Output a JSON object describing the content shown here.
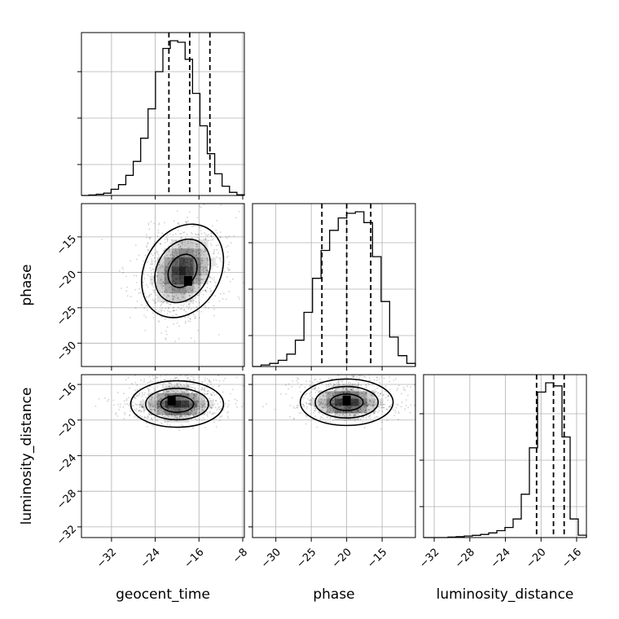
{
  "chart_data": {
    "type": "corner",
    "parameters": [
      "geocent_time",
      "phase",
      "luminosity_distance"
    ],
    "axis_labels": {
      "x": [
        "geocent_time",
        "phase",
        "luminosity_distance"
      ],
      "y": [
        "phase",
        "luminosity_distance"
      ]
    },
    "ranges": {
      "geocent_time": [
        -37.5,
        -7.7
      ],
      "phase": [
        -33.3,
        -10.3
      ],
      "luminosity_distance": [
        -33.2,
        -14.9
      ]
    },
    "ticks": {
      "geocent_time": {
        "values": [
          -32,
          -24,
          -16,
          -8
        ],
        "labels": [
          "−32",
          "−24",
          "−16",
          "−8"
        ]
      },
      "phase": {
        "values": [
          -30,
          -25,
          -20,
          -15
        ],
        "labels": [
          "−30",
          "−25",
          "−20",
          "−15"
        ]
      },
      "luminosity_distance": {
        "values": [
          -32,
          -28,
          -24,
          -20,
          -16
        ],
        "labels": [
          "−32",
          "−28",
          "−24",
          "−20",
          "−16"
        ]
      }
    },
    "grid": true,
    "histograms": [
      {
        "parameter": "geocent_time",
        "range": [
          -37.5,
          -7.7
        ],
        "counts": [
          0.0,
          0.3,
          0.8,
          1.5,
          4.0,
          7.0,
          13.0,
          22.0,
          37.0,
          56.0,
          80.0,
          95.0,
          100.0,
          99.0,
          88.0,
          66.0,
          45.0,
          27.0,
          14.0,
          6.0,
          2.0,
          0.5
        ],
        "quantiles": [
          -21.5,
          -17.7,
          -14.0
        ]
      },
      {
        "parameter": "phase",
        "range": [
          -33.3,
          -10.3
        ],
        "counts": [
          0.0,
          1.0,
          2.0,
          4.0,
          8.0,
          17.0,
          35.0,
          57.0,
          75.0,
          88.0,
          96.0,
          99.0,
          100.0,
          93.0,
          71.0,
          42.0,
          19.0,
          7.0,
          2.0
        ],
        "quantiles": [
          -23.5,
          -20.0,
          -16.6
        ]
      },
      {
        "parameter": "luminosity_distance",
        "range": [
          -33.2,
          -14.9
        ],
        "counts": [
          0.0,
          0.0,
          0.0,
          0.3,
          0.6,
          1.0,
          1.4,
          2.0,
          3.0,
          4.5,
          6.5,
          12.0,
          28.0,
          58.0,
          94.0,
          100.0,
          98.0,
          65.0,
          12.0,
          1.5
        ],
        "quantiles": [
          -20.5,
          -18.6,
          -17.4
        ]
      }
    ],
    "joint_2d": [
      {
        "x": "geocent_time",
        "y": "phase",
        "center": [
          -19.0,
          -19.8
        ],
        "peak_bin": [
          -18.0,
          -21.2
        ],
        "correlation": "negative",
        "contour_levels": 3,
        "scatter_extent": {
          "x": [
            -33.0,
            -9.5
          ],
          "y": [
            -30.5,
            -12.0
          ]
        }
      },
      {
        "x": "geocent_time",
        "y": "luminosity_distance",
        "center": [
          -20.0,
          -18.2
        ],
        "peak_bin": [
          -21.0,
          -17.8
        ],
        "correlation": "weak",
        "contour_levels": 3,
        "scatter_extent": {
          "x": [
            -34.0,
            -9.0
          ],
          "y": [
            -31.5,
            -15.0
          ]
        }
      },
      {
        "x": "phase",
        "y": "luminosity_distance",
        "center": [
          -20.0,
          -18.0
        ],
        "peak_bin": [
          -20.0,
          -17.8
        ],
        "correlation": "weak",
        "contour_levels": 3,
        "scatter_extent": {
          "x": [
            -30.0,
            -11.0
          ],
          "y": [
            -31.5,
            -15.0
          ]
        }
      }
    ]
  }
}
